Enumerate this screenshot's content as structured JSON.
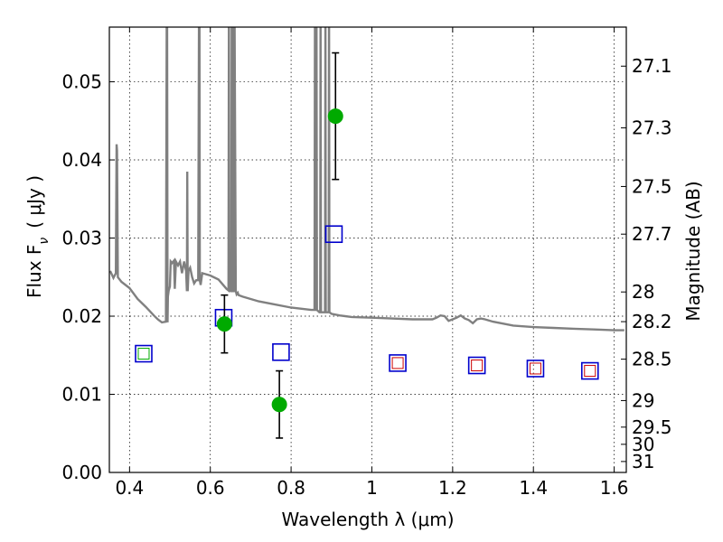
{
  "chart_data": {
    "type": "scatter",
    "xlabel": "Wavelength  λ (μm)",
    "ylabel": "Flux  F",
    "ylabel_sub": "ν",
    "ylabel_unit": "( μJy )",
    "y2label": "Magnitude (AB)",
    "xlim": [
      0.35,
      1.63
    ],
    "ylim": [
      0.0,
      0.057
    ],
    "grid": true,
    "x_ticks": [
      0.4,
      0.6,
      0.8,
      1.0,
      1.2,
      1.4,
      1.6
    ],
    "x_tick_labels": [
      "0.4",
      "0.6",
      "0.8",
      "1",
      "1.2",
      "1.4",
      "1.6"
    ],
    "y_ticks": [
      0.0,
      0.01,
      0.02,
      0.03,
      0.04,
      0.05
    ],
    "y_tick_labels": [
      "0.00",
      "0.01",
      "0.02",
      "0.03",
      "0.04",
      "0.05"
    ],
    "y2_ticks": [
      {
        "label": "27.1",
        "flux": 0.052
      },
      {
        "label": "27.3",
        "flux": 0.0441
      },
      {
        "label": "27.5",
        "flux": 0.0366
      },
      {
        "label": "27.7",
        "flux": 0.0305
      },
      {
        "label": "28",
        "flux": 0.0231
      },
      {
        "label": "28.2",
        "flux": 0.0193
      },
      {
        "label": "28.5",
        "flux": 0.0145
      },
      {
        "label": "29",
        "flux": 0.0092
      },
      {
        "label": "29.5",
        "flux": 0.0058
      },
      {
        "label": "30",
        "flux": 0.0036
      },
      {
        "label": "31",
        "flux": 0.0014
      }
    ],
    "model_spectrum": {
      "color": "#808080",
      "x": [
        0.352,
        0.36,
        0.366,
        0.368,
        0.369,
        0.371,
        0.38,
        0.4,
        0.42,
        0.44,
        0.46,
        0.47,
        0.48,
        0.49,
        0.492,
        0.493,
        0.494,
        0.495,
        0.497,
        0.5,
        0.502,
        0.505,
        0.51,
        0.512,
        0.515,
        0.52,
        0.525,
        0.53,
        0.535,
        0.54,
        0.542,
        0.543,
        0.544,
        0.546,
        0.55,
        0.555,
        0.56,
        0.565,
        0.57,
        0.572,
        0.573,
        0.574,
        0.576,
        0.58,
        0.6,
        0.62,
        0.64,
        0.645,
        0.646,
        0.647,
        0.65,
        0.652,
        0.653,
        0.654,
        0.656,
        0.658,
        0.659,
        0.66,
        0.663,
        0.665,
        0.668,
        0.67,
        0.68,
        0.7,
        0.72,
        0.75,
        0.8,
        0.85,
        0.858,
        0.859,
        0.86,
        0.862,
        0.863,
        0.864,
        0.87,
        0.872,
        0.873,
        0.874,
        0.88,
        0.884,
        0.885,
        0.886,
        0.89,
        0.893,
        0.894,
        0.895,
        0.9,
        0.92,
        0.95,
        1.0,
        1.05,
        1.1,
        1.15,
        1.16,
        1.17,
        1.18,
        1.19,
        1.2,
        1.21,
        1.22,
        1.23,
        1.24,
        1.25,
        1.26,
        1.27,
        1.28,
        1.3,
        1.35,
        1.4,
        1.45,
        1.5,
        1.55,
        1.6,
        1.625
      ],
      "y": [
        0.0258,
        0.0249,
        0.0255,
        0.042,
        0.0412,
        0.025,
        0.0244,
        0.0236,
        0.0222,
        0.0212,
        0.0201,
        0.0196,
        0.0192,
        0.0193,
        0.06,
        0.06,
        0.0192,
        0.0225,
        0.0233,
        0.0238,
        0.027,
        0.0268,
        0.0271,
        0.0235,
        0.027,
        0.0265,
        0.027,
        0.0255,
        0.027,
        0.0258,
        0.0232,
        0.0385,
        0.0232,
        0.0258,
        0.0262,
        0.025,
        0.0242,
        0.0246,
        0.0246,
        0.06,
        0.06,
        0.0246,
        0.024,
        0.0255,
        0.0252,
        0.0247,
        0.0235,
        0.0233,
        0.06,
        0.0233,
        0.0232,
        0.0232,
        0.06,
        0.06,
        0.0232,
        0.0232,
        0.06,
        0.06,
        0.0232,
        0.0228,
        0.023,
        0.0227,
        0.0225,
        0.0222,
        0.0219,
        0.0216,
        0.0211,
        0.0208,
        0.0208,
        0.06,
        0.0208,
        0.0208,
        0.06,
        0.0208,
        0.0205,
        0.0205,
        0.06,
        0.0205,
        0.0205,
        0.0205,
        0.06,
        0.0205,
        0.0205,
        0.0205,
        0.06,
        0.0205,
        0.0203,
        0.0201,
        0.0199,
        0.0198,
        0.0197,
        0.0196,
        0.0196,
        0.0198,
        0.0201,
        0.02,
        0.0194,
        0.0196,
        0.0198,
        0.0201,
        0.0197,
        0.0195,
        0.0191,
        0.0196,
        0.0197,
        0.0196,
        0.0193,
        0.0188,
        0.0186,
        0.0185,
        0.0184,
        0.0183,
        0.0182,
        0.0182
      ]
    },
    "observed": {
      "color": "#00aa00",
      "x": [
        0.635,
        0.771,
        0.91
      ],
      "y": [
        0.019,
        0.0087,
        0.0456
      ],
      "yerr_low": [
        0.0037,
        0.0043,
        0.0081
      ],
      "yerr_high": [
        0.0037,
        0.0043,
        0.0081
      ]
    },
    "model_photometry": {
      "color": "#0000cc",
      "x": [
        0.435,
        0.633,
        0.775,
        0.906,
        1.064,
        1.26,
        1.405,
        1.54
      ],
      "y": [
        0.0152,
        0.0198,
        0.0154,
        0.0305,
        0.014,
        0.0137,
        0.0133,
        0.013
      ]
    },
    "inner_squares": {
      "x": [
        0.435,
        1.064,
        1.26,
        1.405,
        1.54
      ],
      "y": [
        0.0152,
        0.014,
        0.0137,
        0.0133,
        0.013
      ],
      "colors": [
        "#00aa00",
        "#cc0000",
        "#cc0000",
        "#cc0000",
        "#cc0000"
      ]
    }
  }
}
